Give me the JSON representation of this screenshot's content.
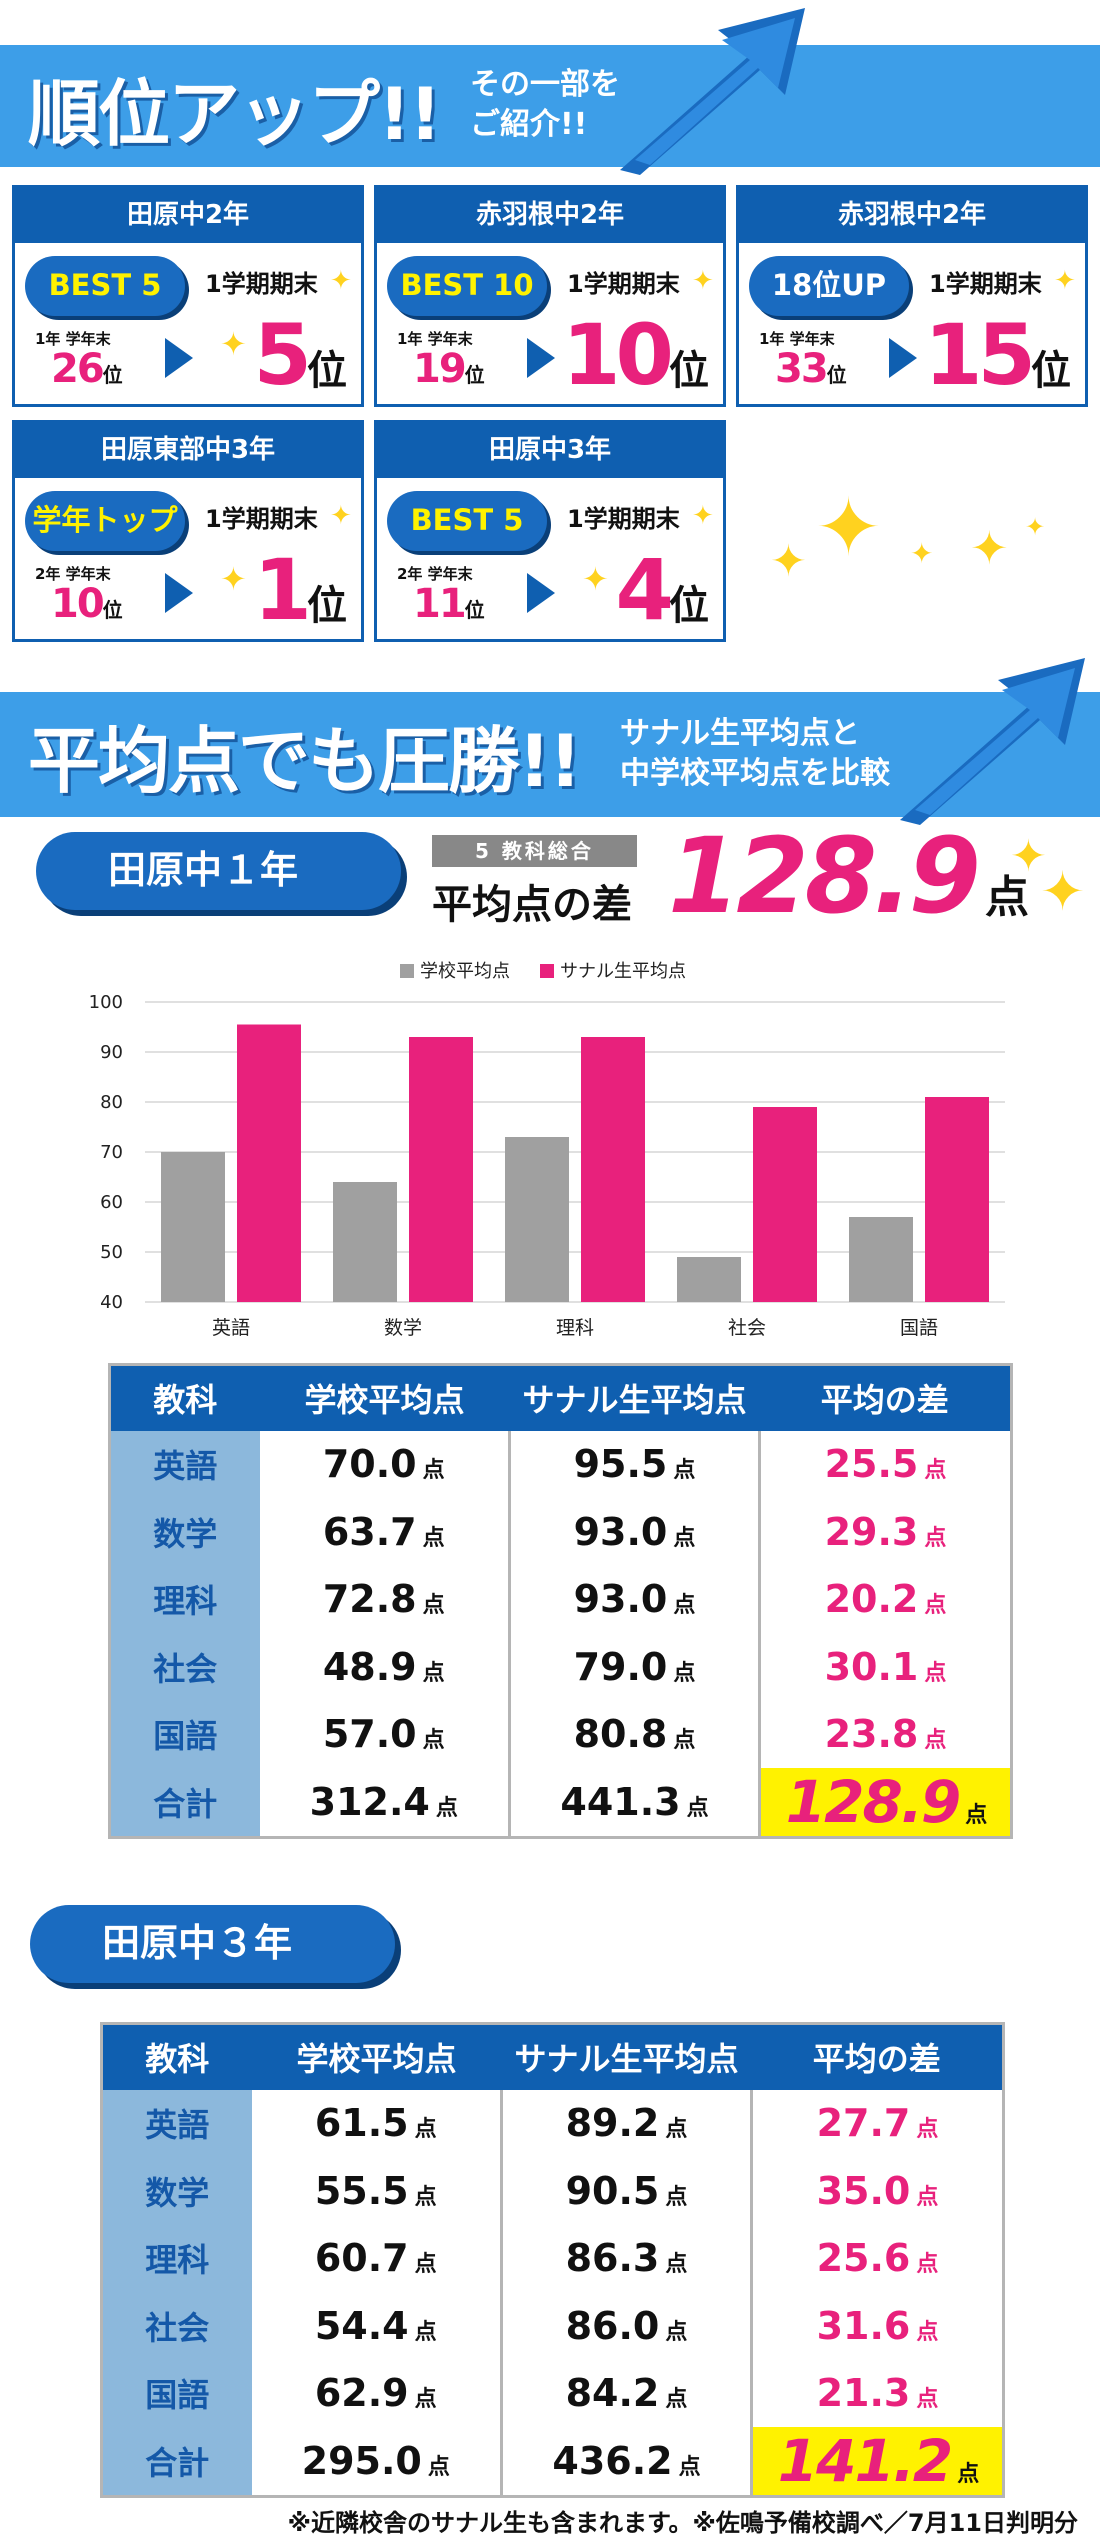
{
  "colors": {
    "blue": "#0f5fb0",
    "light_blue": "#3d9ee8",
    "pink": "#e8217c",
    "gray": "#a0a0a0",
    "yellow": "#fff200"
  },
  "section1": {
    "title": "順位アップ!!",
    "subtitle_line1": "その一部を",
    "subtitle_line2": "ご紹介!!"
  },
  "cards": [
    {
      "school": "田原中2年",
      "badge": "BEST 5",
      "term": "1学期期末",
      "prev_label": "1年 学年末",
      "prev_rank": "26",
      "cur_rank": "5",
      "unit": "位"
    },
    {
      "school": "赤羽根中2年",
      "badge": "BEST 10",
      "term": "1学期期末",
      "prev_label": "1年 学年末",
      "prev_rank": "19",
      "cur_rank": "10",
      "unit": "位"
    },
    {
      "school": "赤羽根中2年",
      "badge": "18位UP",
      "term": "1学期期末",
      "prev_label": "1年 学年末",
      "prev_rank": "33",
      "cur_rank": "15",
      "unit": "位"
    },
    {
      "school": "田原東部中3年",
      "badge": "学年トップ",
      "term": "1学期期末",
      "prev_label": "2年 学年末",
      "prev_rank": "10",
      "cur_rank": "1",
      "unit": "位"
    },
    {
      "school": "田原中3年",
      "badge": "BEST 5",
      "term": "1学期期末",
      "prev_label": "2年 学年末",
      "prev_rank": "11",
      "cur_rank": "4",
      "unit": "位"
    }
  ],
  "section2": {
    "title": "平均点でも圧勝!!",
    "subtitle_line1": "サナル生平均点と",
    "subtitle_line2": "中学校平均点を比較"
  },
  "grade1": {
    "tag": "田原中１年",
    "diff_label_small": "5 教科総合",
    "diff_label": "平均点の差",
    "diff_value": "128.9",
    "diff_unit": "点",
    "headers": [
      "教科",
      "学校平均点",
      "サナル生平均点",
      "平均の差"
    ],
    "rows": [
      {
        "subject": "英語",
        "school": "70.0",
        "sanaru": "95.5",
        "diff": "25.5"
      },
      {
        "subject": "数学",
        "school": "63.7",
        "sanaru": "93.0",
        "diff": "29.3"
      },
      {
        "subject": "理科",
        "school": "72.8",
        "sanaru": "93.0",
        "diff": "20.2"
      },
      {
        "subject": "社会",
        "school": "48.9",
        "sanaru": "79.0",
        "diff": "30.1"
      },
      {
        "subject": "国語",
        "school": "57.0",
        "sanaru": "80.8",
        "diff": "23.8"
      },
      {
        "subject": "合計",
        "school": "312.4",
        "sanaru": "441.3",
        "diff": "128.9"
      }
    ],
    "unit": "点"
  },
  "chart_data": {
    "type": "bar",
    "categories": [
      "英語",
      "数学",
      "理科",
      "社会",
      "国語"
    ],
    "series": [
      {
        "name": "学校平均点",
        "values": [
          70,
          64,
          73,
          49,
          57
        ],
        "color": "#a0a0a0"
      },
      {
        "name": "サナル生平均点",
        "values": [
          95.5,
          93,
          93,
          79,
          81
        ],
        "color": "#e8217c"
      }
    ],
    "ylim": [
      40,
      100
    ],
    "yticks": [
      40,
      50,
      60,
      70,
      80,
      90,
      100
    ],
    "legend": "top-center"
  },
  "grade3": {
    "tag": "田原中３年",
    "headers": [
      "教科",
      "学校平均点",
      "サナル生平均点",
      "平均の差"
    ],
    "rows": [
      {
        "subject": "英語",
        "school": "61.5",
        "sanaru": "89.2",
        "diff": "27.7"
      },
      {
        "subject": "数学",
        "school": "55.5",
        "sanaru": "90.5",
        "diff": "35.0"
      },
      {
        "subject": "理科",
        "school": "60.7",
        "sanaru": "86.3",
        "diff": "25.6"
      },
      {
        "subject": "社会",
        "school": "54.4",
        "sanaru": "86.0",
        "diff": "31.6"
      },
      {
        "subject": "国語",
        "school": "62.9",
        "sanaru": "84.2",
        "diff": "21.3"
      },
      {
        "subject": "合計",
        "school": "295.0",
        "sanaru": "436.2",
        "diff": "141.2"
      }
    ],
    "unit": "点"
  },
  "footnote": "※近隣校舎のサナル生も含まれます。※佐鳴予備校調べ／7月11日判明分"
}
